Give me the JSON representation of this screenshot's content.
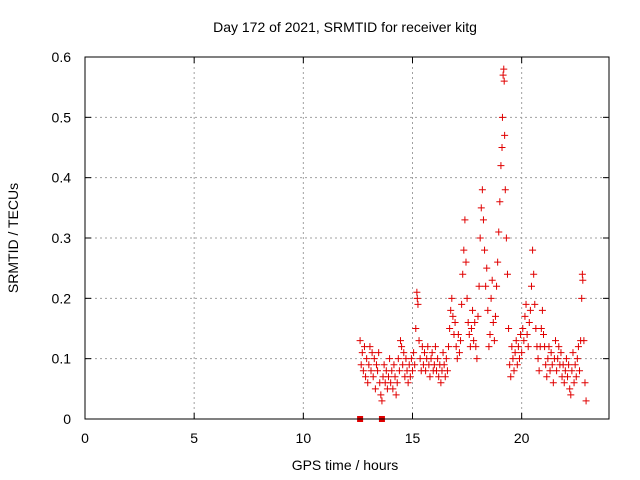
{
  "chart_data": {
    "type": "scatter",
    "title": "Day 172 of 2021, SRMTID for receiver kitg",
    "xlabel": "GPS time / hours",
    "ylabel": "SRMTID / TECUs",
    "xlim": [
      0,
      24
    ],
    "ylim": [
      0,
      0.6
    ],
    "x_ticks": [
      "0",
      "5",
      "10",
      "15",
      "20"
    ],
    "x_tick_values": [
      0,
      5,
      10,
      15,
      20
    ],
    "y_ticks": [
      "0",
      "0.1",
      "0.2",
      "0.3",
      "0.4",
      "0.5",
      "0.6"
    ],
    "y_tick_values": [
      0,
      0.1,
      0.2,
      0.3,
      0.4,
      0.5,
      0.6
    ],
    "grid": true,
    "marker": "plus",
    "color": "#e00000",
    "series": [
      {
        "name": "SRMTID",
        "points": [
          [
            12.6,
            0.13
          ],
          [
            12.65,
            0.09
          ],
          [
            12.7,
            0.11
          ],
          [
            12.75,
            0.08
          ],
          [
            12.8,
            0.12
          ],
          [
            12.85,
            0.07
          ],
          [
            12.9,
            0.1
          ],
          [
            12.95,
            0.06
          ],
          [
            13.0,
            0.09
          ],
          [
            13.05,
            0.12
          ],
          [
            13.1,
            0.08
          ],
          [
            13.15,
            0.11
          ],
          [
            13.2,
            0.07
          ],
          [
            13.25,
            0.1
          ],
          [
            13.3,
            0.05
          ],
          [
            13.35,
            0.09
          ],
          [
            13.4,
            0.08
          ],
          [
            13.45,
            0.11
          ],
          [
            13.5,
            0.06
          ],
          [
            13.55,
            0.04
          ],
          [
            13.6,
            0.03
          ],
          [
            13.65,
            0.07
          ],
          [
            13.7,
            0.09
          ],
          [
            13.75,
            0.06
          ],
          [
            13.8,
            0.08
          ],
          [
            13.85,
            0.05
          ],
          [
            13.9,
            0.07
          ],
          [
            13.95,
            0.1
          ],
          [
            14.0,
            0.06
          ],
          [
            14.05,
            0.08
          ],
          [
            14.1,
            0.05
          ],
          [
            14.15,
            0.09
          ],
          [
            14.2,
            0.07
          ],
          [
            14.25,
            0.04
          ],
          [
            14.3,
            0.06
          ],
          [
            14.35,
            0.1
          ],
          [
            14.4,
            0.08
          ],
          [
            14.45,
            0.13
          ],
          [
            14.5,
            0.12
          ],
          [
            14.55,
            0.09
          ],
          [
            14.6,
            0.11
          ],
          [
            14.65,
            0.07
          ],
          [
            14.7,
            0.1
          ],
          [
            14.75,
            0.08
          ],
          [
            14.8,
            0.06
          ],
          [
            14.85,
            0.09
          ],
          [
            14.9,
            0.07
          ],
          [
            14.95,
            0.1
          ],
          [
            15.0,
            0.08
          ],
          [
            15.05,
            0.11
          ],
          [
            15.1,
            0.09
          ],
          [
            15.15,
            0.15
          ],
          [
            15.2,
            0.21
          ],
          [
            15.22,
            0.2
          ],
          [
            15.25,
            0.19
          ],
          [
            15.3,
            0.13
          ],
          [
            15.35,
            0.1
          ],
          [
            15.4,
            0.08
          ],
          [
            15.45,
            0.12
          ],
          [
            15.5,
            0.09
          ],
          [
            15.55,
            0.11
          ],
          [
            15.6,
            0.08
          ],
          [
            15.65,
            0.1
          ],
          [
            15.7,
            0.12
          ],
          [
            15.75,
            0.09
          ],
          [
            15.8,
            0.07
          ],
          [
            15.85,
            0.1
          ],
          [
            15.9,
            0.11
          ],
          [
            15.95,
            0.08
          ],
          [
            16.0,
            0.09
          ],
          [
            16.05,
            0.12
          ],
          [
            16.1,
            0.08
          ],
          [
            16.15,
            0.1
          ],
          [
            16.2,
            0.07
          ],
          [
            16.25,
            0.09
          ],
          [
            16.3,
            0.06
          ],
          [
            16.35,
            0.08
          ],
          [
            16.4,
            0.11
          ],
          [
            16.45,
            0.09
          ],
          [
            16.5,
            0.07
          ],
          [
            16.55,
            0.1
          ],
          [
            16.6,
            0.08
          ],
          [
            16.65,
            0.12
          ],
          [
            16.7,
            0.15
          ],
          [
            16.75,
            0.18
          ],
          [
            16.8,
            0.2
          ],
          [
            16.85,
            0.17
          ],
          [
            16.9,
            0.14
          ],
          [
            16.95,
            0.16
          ],
          [
            17.0,
            0.12
          ],
          [
            17.05,
            0.1
          ],
          [
            17.1,
            0.14
          ],
          [
            17.15,
            0.11
          ],
          [
            17.2,
            0.13
          ],
          [
            17.25,
            0.19
          ],
          [
            17.3,
            0.24
          ],
          [
            17.35,
            0.28
          ],
          [
            17.4,
            0.33
          ],
          [
            17.45,
            0.26
          ],
          [
            17.5,
            0.2
          ],
          [
            17.55,
            0.16
          ],
          [
            17.6,
            0.14
          ],
          [
            17.65,
            0.12
          ],
          [
            17.7,
            0.15
          ],
          [
            17.75,
            0.18
          ],
          [
            17.8,
            0.13
          ],
          [
            17.85,
            0.16
          ],
          [
            17.9,
            0.12
          ],
          [
            17.95,
            0.1
          ],
          [
            18.0,
            0.17
          ],
          [
            18.05,
            0.22
          ],
          [
            18.1,
            0.3
          ],
          [
            18.15,
            0.35
          ],
          [
            18.2,
            0.38
          ],
          [
            18.25,
            0.33
          ],
          [
            18.3,
            0.28
          ],
          [
            18.35,
            0.22
          ],
          [
            18.4,
            0.25
          ],
          [
            18.45,
            0.18
          ],
          [
            18.5,
            0.12
          ],
          [
            18.55,
            0.14
          ],
          [
            18.6,
            0.2
          ],
          [
            18.65,
            0.23
          ],
          [
            18.7,
            0.16
          ],
          [
            18.75,
            0.13
          ],
          [
            18.8,
            0.17
          ],
          [
            18.85,
            0.22
          ],
          [
            18.9,
            0.26
          ],
          [
            18.95,
            0.31
          ],
          [
            19.0,
            0.36
          ],
          [
            19.05,
            0.42
          ],
          [
            19.1,
            0.45
          ],
          [
            19.12,
            0.5
          ],
          [
            19.15,
            0.57
          ],
          [
            19.18,
            0.58
          ],
          [
            19.2,
            0.56
          ],
          [
            19.22,
            0.47
          ],
          [
            19.25,
            0.38
          ],
          [
            19.3,
            0.3
          ],
          [
            19.35,
            0.24
          ],
          [
            19.4,
            0.15
          ],
          [
            19.45,
            0.09
          ],
          [
            19.5,
            0.07
          ],
          [
            19.55,
            0.12
          ],
          [
            19.6,
            0.1
          ],
          [
            19.65,
            0.08
          ],
          [
            19.7,
            0.11
          ],
          [
            19.75,
            0.13
          ],
          [
            19.8,
            0.09
          ],
          [
            19.85,
            0.12
          ],
          [
            19.9,
            0.1
          ],
          [
            19.95,
            0.14
          ],
          [
            20.0,
            0.11
          ],
          [
            20.05,
            0.15
          ],
          [
            20.1,
            0.13
          ],
          [
            20.15,
            0.17
          ],
          [
            20.2,
            0.19
          ],
          [
            20.25,
            0.14
          ],
          [
            20.3,
            0.12
          ],
          [
            20.35,
            0.16
          ],
          [
            20.4,
            0.18
          ],
          [
            20.45,
            0.22
          ],
          [
            20.5,
            0.28
          ],
          [
            20.55,
            0.24
          ],
          [
            20.6,
            0.19
          ],
          [
            20.65,
            0.15
          ],
          [
            20.7,
            0.12
          ],
          [
            20.75,
            0.1
          ],
          [
            20.8,
            0.08
          ],
          [
            20.85,
            0.12
          ],
          [
            20.9,
            0.15
          ],
          [
            20.95,
            0.18
          ],
          [
            21.0,
            0.14
          ],
          [
            21.05,
            0.12
          ],
          [
            21.1,
            0.09
          ],
          [
            21.15,
            0.07
          ],
          [
            21.2,
            0.1
          ],
          [
            21.25,
            0.12
          ],
          [
            21.3,
            0.08
          ],
          [
            21.35,
            0.11
          ],
          [
            21.4,
            0.09
          ],
          [
            21.45,
            0.06
          ],
          [
            21.5,
            0.1
          ],
          [
            21.55,
            0.13
          ],
          [
            21.6,
            0.08
          ],
          [
            21.65,
            0.1
          ],
          [
            21.7,
            0.12
          ],
          [
            21.75,
            0.09
          ],
          [
            21.8,
            0.11
          ],
          [
            21.85,
            0.07
          ],
          [
            21.9,
            0.09
          ],
          [
            21.95,
            0.06
          ],
          [
            22.0,
            0.08
          ],
          [
            22.05,
            0.1
          ],
          [
            22.1,
            0.07
          ],
          [
            22.15,
            0.09
          ],
          [
            22.2,
            0.05
          ],
          [
            22.25,
            0.04
          ],
          [
            22.3,
            0.08
          ],
          [
            22.35,
            0.11
          ],
          [
            22.4,
            0.06
          ],
          [
            22.45,
            0.09
          ],
          [
            22.5,
            0.07
          ],
          [
            22.55,
            0.1
          ],
          [
            22.6,
            0.12
          ],
          [
            22.65,
            0.08
          ],
          [
            22.7,
            0.13
          ],
          [
            22.75,
            0.2
          ],
          [
            22.78,
            0.24
          ],
          [
            22.8,
            0.23
          ],
          [
            22.85,
            0.13
          ],
          [
            22.9,
            0.06
          ],
          [
            22.95,
            0.03
          ]
        ]
      },
      {
        "name": "zero-level markers",
        "marker": "square",
        "points": [
          [
            12.6,
            0
          ],
          [
            13.6,
            0
          ]
        ]
      }
    ]
  }
}
